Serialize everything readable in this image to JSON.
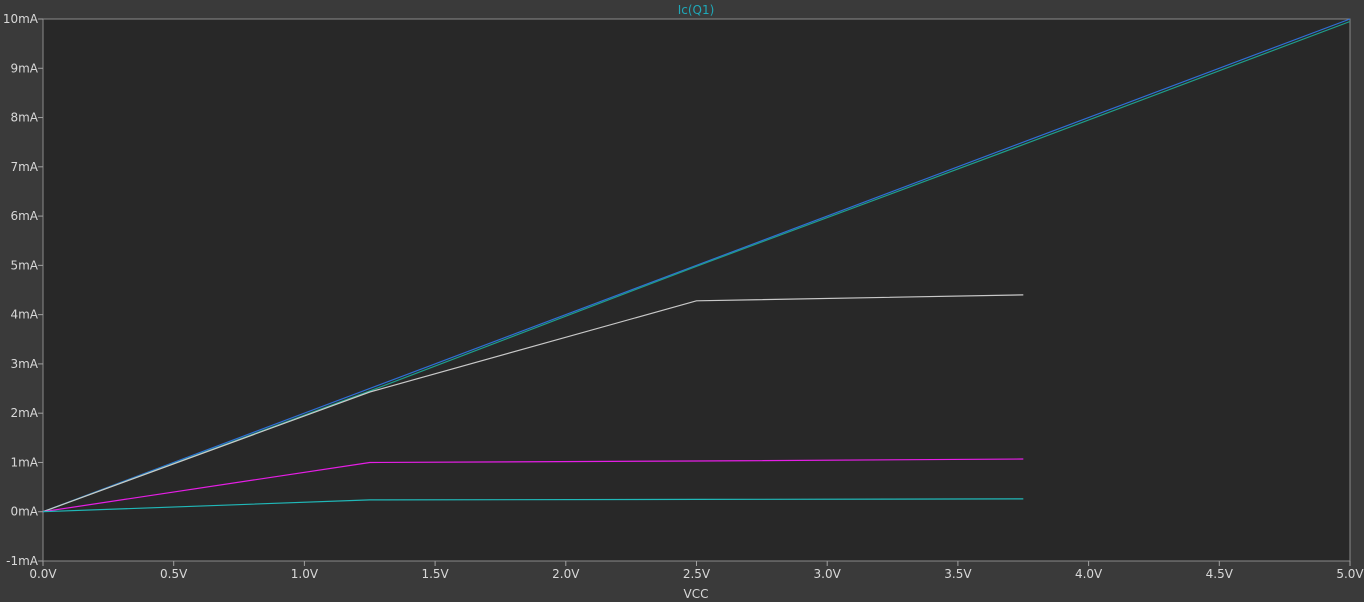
{
  "chart_data": {
    "type": "line",
    "title": "Ic(Q1)",
    "title_color": "#1fa8b8",
    "xlabel": "VCC",
    "ylabel": "",
    "xlim": [
      0,
      5
    ],
    "ylim": [
      -1,
      10
    ],
    "x_ticks": [
      "0.0V",
      "0.5V",
      "1.0V",
      "1.5V",
      "2.0V",
      "2.5V",
      "3.0V",
      "3.5V",
      "4.0V",
      "4.5V",
      "5.0V"
    ],
    "y_ticks": [
      "-1mA",
      "0mA",
      "1mA",
      "2mA",
      "3mA",
      "4mA",
      "5mA",
      "6mA",
      "7mA",
      "8mA",
      "9mA",
      "10mA"
    ],
    "grid": false,
    "background": "#282828",
    "series": [
      {
        "color": "#2f6fd8",
        "x": [
          0,
          5
        ],
        "y": [
          0,
          10
        ]
      },
      {
        "color": "#1f9e8a",
        "x": [
          0,
          1.25,
          2.5,
          3.75,
          5
        ],
        "y": [
          0,
          2.45,
          4.98,
          7.45,
          9.95
        ]
      },
      {
        "color": "#c8c8c8",
        "x": [
          0,
          1.25,
          2.5,
          3.75
        ],
        "y": [
          0,
          2.43,
          4.28,
          4.4
        ]
      },
      {
        "color": "#e61ee6",
        "x": [
          0,
          1.25,
          2.5,
          3.75
        ],
        "y": [
          0,
          1.0,
          1.03,
          1.07
        ]
      },
      {
        "color": "#20b8b8",
        "x": [
          0,
          1.25,
          2.5,
          3.75
        ],
        "y": [
          0,
          0.24,
          0.25,
          0.26
        ]
      }
    ]
  }
}
